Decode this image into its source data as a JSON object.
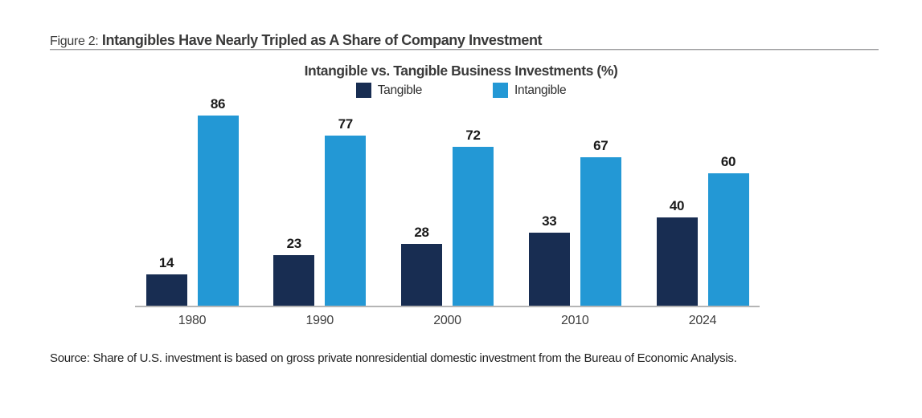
{
  "figure": {
    "label": "Figure 2:",
    "title": "Intangibles Have Nearly Tripled as A Share of Company Investment"
  },
  "chart_data": {
    "type": "bar",
    "title": "Intangible vs. Tangible Business Investments (%)",
    "categories": [
      "1980",
      "1990",
      "2000",
      "2010",
      "2024"
    ],
    "series": [
      {
        "name": "Tangible",
        "color": "#182d52",
        "values": [
          14,
          23,
          28,
          33,
          40
        ]
      },
      {
        "name": "Intangible",
        "color": "#2398d5",
        "values": [
          86,
          77,
          72,
          67,
          60
        ]
      }
    ],
    "ylim": [
      0,
      90
    ],
    "grid": false,
    "legend_position": "top",
    "value_labels": true,
    "axis_line_color": "#b5b5b5"
  },
  "source": "Source: Share of U.S. investment is based on gross private nonresidential domestic investment from the Bureau of Economic Analysis."
}
